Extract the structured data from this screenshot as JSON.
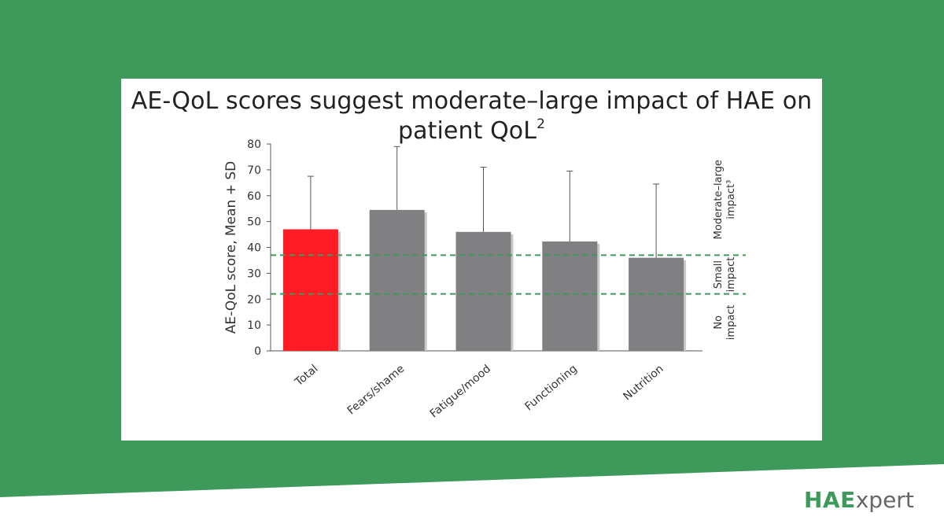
{
  "slide": {
    "title_main": "AE-QoL scores suggest moderate–large impact of HAE on patient QoL",
    "title_sup": "2",
    "colors": {
      "background": "#3d9a5b",
      "card": "#ffffff"
    }
  },
  "logo": {
    "brand_bold": "HAE",
    "brand_light": "xpert",
    "color": "#3d9a5b"
  },
  "chart_data": {
    "type": "bar",
    "ylabel": "AE-QoL score, Mean + SD",
    "ylim": [
      0,
      80
    ],
    "yticks": [
      0,
      10,
      20,
      30,
      40,
      50,
      60,
      70,
      80
    ],
    "categories": [
      "Total",
      "Fears/shame",
      "Fatigue/mood",
      "Functioning",
      "Nutrition"
    ],
    "values": [
      47,
      54.5,
      46,
      42.3,
      36
    ],
    "error_upper": [
      67.5,
      79,
      71,
      69.5,
      64.5
    ],
    "colors": [
      "#ff1c24",
      "#808083",
      "#808083",
      "#808083",
      "#808083"
    ],
    "thresholds": [
      {
        "value": 37,
        "color": "#3d9a5b"
      },
      {
        "value": 22,
        "color": "#3d9a5b"
      }
    ],
    "zones": [
      {
        "lines": [
          "Moderate–large",
          "impact³"
        ],
        "from": 37,
        "to": 80
      },
      {
        "lines": [
          "Small",
          "impact"
        ],
        "from": 22,
        "to": 37
      },
      {
        "lines": [
          "No",
          "impact"
        ],
        "from": 0,
        "to": 22
      }
    ],
    "grid": false,
    "legend": "none"
  }
}
